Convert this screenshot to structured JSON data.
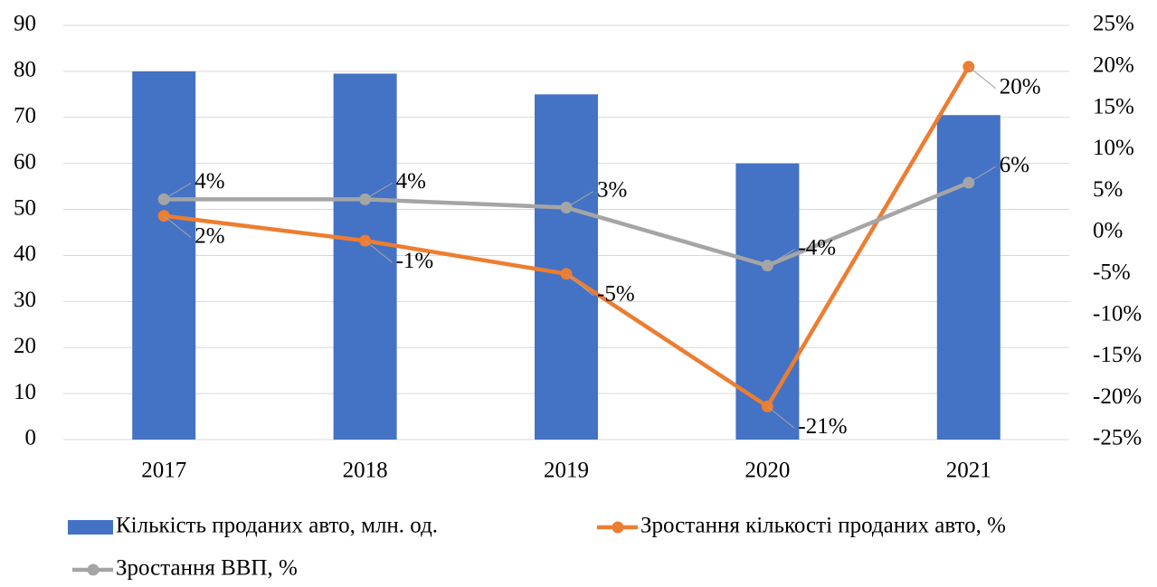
{
  "chart_data": {
    "type": "combo",
    "categories": [
      "2017",
      "2018",
      "2019",
      "2020",
      "2021"
    ],
    "series": [
      {
        "name": "Кількість проданих авто, млн. од.",
        "type": "bar",
        "color": "#4472c4",
        "axis": "y",
        "values": [
          80,
          79.5,
          75,
          60,
          70.5
        ]
      },
      {
        "name": "Зростання кількості проданих авто, %",
        "type": "line",
        "color": "#ed7d31",
        "axis": "y2",
        "values": [
          2,
          -1,
          -5,
          -21,
          20
        ],
        "value_labels": [
          "2%",
          "-1%",
          "-5%",
          "-21%",
          "20%"
        ]
      },
      {
        "name": "Зростання ВВП, %",
        "type": "line",
        "color": "#a5a5a5",
        "axis": "y2",
        "values": [
          4,
          4,
          3,
          -4,
          6
        ],
        "value_labels": [
          "4%",
          "4%",
          "3%",
          "-4%",
          "6%"
        ]
      }
    ],
    "ylim": [
      0,
      90
    ],
    "yticks": [
      0,
      10,
      20,
      30,
      40,
      50,
      60,
      70,
      80,
      90
    ],
    "y2lim": [
      -25,
      25
    ],
    "y2ticks": [
      {
        "value": -25,
        "label": "-25%"
      },
      {
        "value": -20,
        "label": "-20%"
      },
      {
        "value": -15,
        "label": "-15%"
      },
      {
        "value": -10,
        "label": "-10%"
      },
      {
        "value": -5,
        "label": "-5%"
      },
      {
        "value": 0,
        "label": "0%"
      },
      {
        "value": 5,
        "label": "5%"
      },
      {
        "value": 10,
        "label": "10%"
      },
      {
        "value": 15,
        "label": "15%"
      },
      {
        "value": 20,
        "label": "20%"
      },
      {
        "value": 25,
        "label": "25%"
      }
    ],
    "grid": true,
    "legend": "bottom"
  }
}
